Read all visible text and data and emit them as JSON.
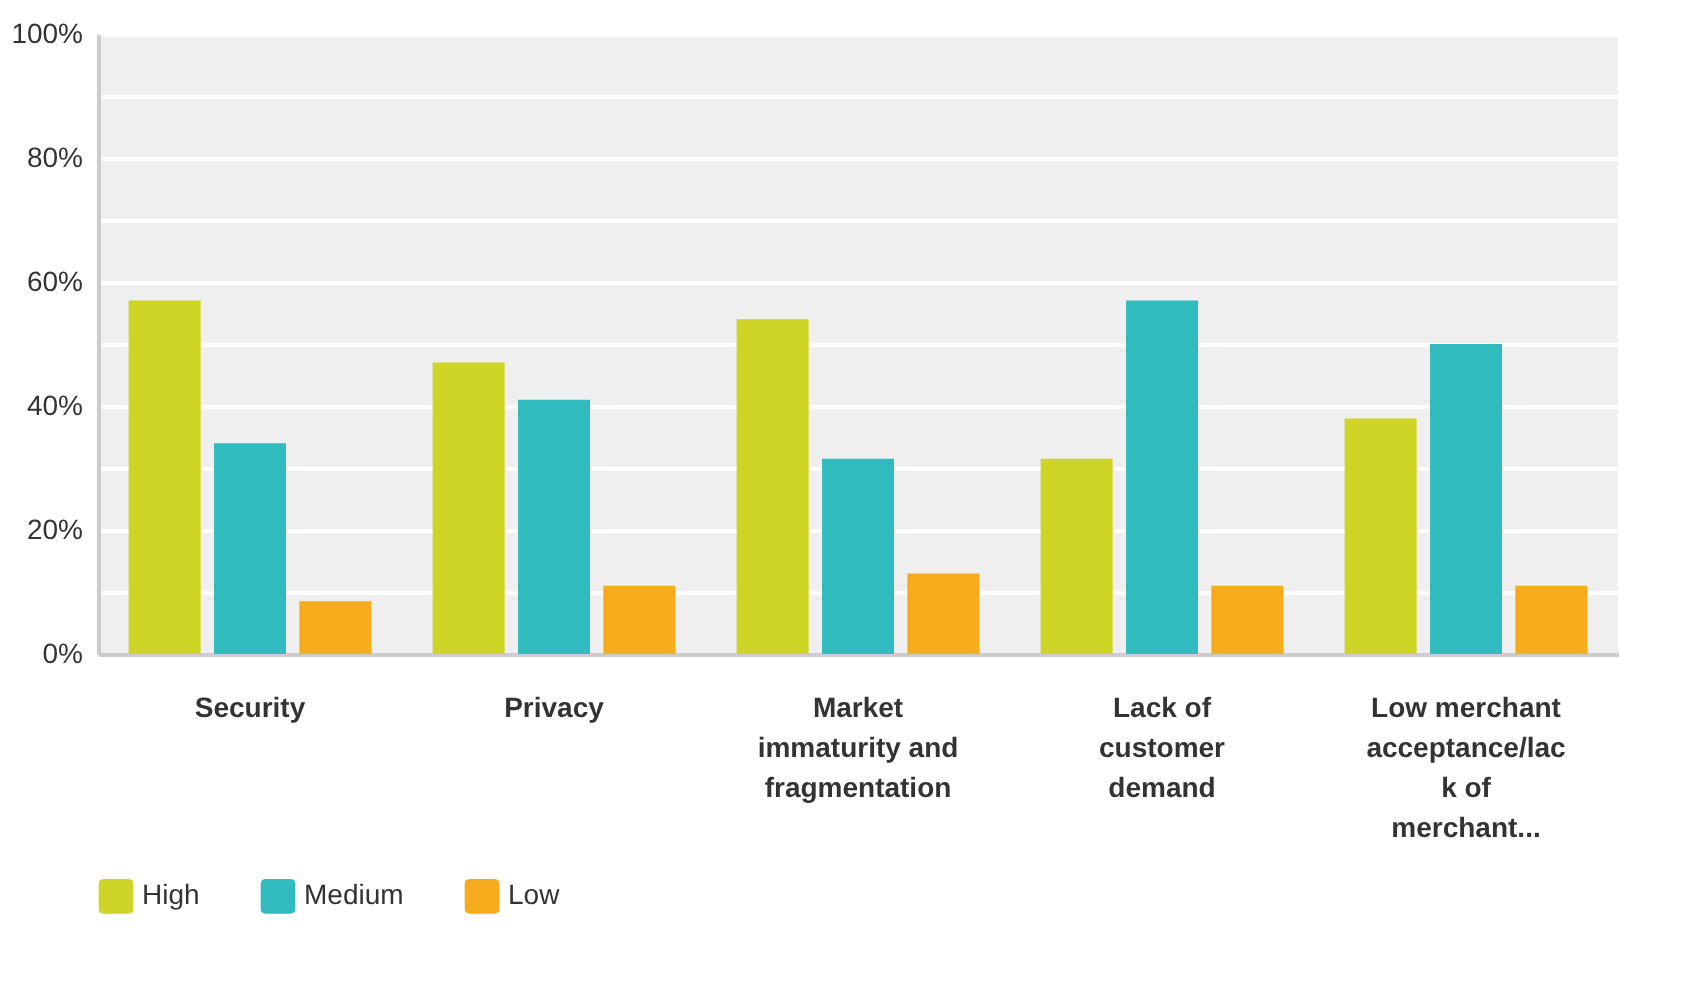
{
  "chart_data": {
    "type": "bar",
    "categories": [
      "Security",
      "Privacy",
      "Market immaturity and fragmentation",
      "Lack of customer demand",
      "Low merchant acceptance/lack of merchant..."
    ],
    "series": [
      {
        "name": "High",
        "color": "#cdd425",
        "values": [
          57,
          47,
          54,
          31.5,
          38
        ]
      },
      {
        "name": "Medium",
        "color": "#32bbbe",
        "values": [
          34,
          41,
          31.5,
          57,
          50
        ]
      },
      {
        "name": "Low",
        "color": "#f6ac1d",
        "values": [
          8.5,
          11,
          13,
          11,
          11
        ]
      }
    ],
    "ylim": [
      0,
      100
    ],
    "yticks": [
      {
        "value": 0,
        "label": "0%"
      },
      {
        "value": 10,
        "label": null
      },
      {
        "value": 20,
        "label": "20%"
      },
      {
        "value": 30,
        "label": null
      },
      {
        "value": 40,
        "label": "40%"
      },
      {
        "value": 50,
        "label": null
      },
      {
        "value": 60,
        "label": "60%"
      },
      {
        "value": 70,
        "label": null
      },
      {
        "value": 80,
        "label": "80%"
      },
      {
        "value": 90,
        "label": null
      },
      {
        "value": 100,
        "label": "100%"
      }
    ],
    "grid": "y",
    "legend": "bottom left"
  }
}
